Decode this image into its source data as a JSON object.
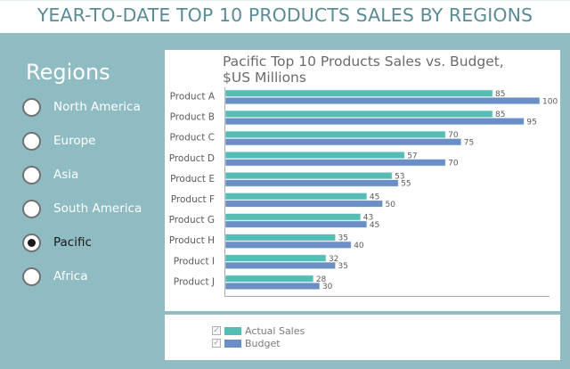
{
  "page_title": "YEAR-TO-DATE TOP 10 PRODUCTS SALES BY REGIONS",
  "sidebar": {
    "title": "Regions",
    "options": [
      {
        "label": "North America",
        "selected": false
      },
      {
        "label": "Europe",
        "selected": false
      },
      {
        "label": "Asia",
        "selected": false
      },
      {
        "label": "South America",
        "selected": false
      },
      {
        "label": "Pacific",
        "selected": true
      },
      {
        "label": "Africa",
        "selected": false
      }
    ]
  },
  "colors": {
    "actual": "#55bdb4",
    "budget": "#6b8ec6",
    "background": "#8fbcc3",
    "title": "#5a8c96"
  },
  "legend": {
    "items": [
      {
        "label": "Actual Sales",
        "checked": true,
        "color": "#55bdb4"
      },
      {
        "label": "Budget",
        "checked": true,
        "color": "#6b8ec6"
      }
    ]
  },
  "chart_data": {
    "type": "bar",
    "orientation": "horizontal",
    "title": "Pacific Top 10 Products Sales vs. Budget, $US Millions",
    "xlabel": "",
    "ylabel": "",
    "xlim": [
      0,
      100
    ],
    "grid": false,
    "legend_position": "bottom",
    "categories": [
      "Product A",
      "Product B",
      "Product C",
      "Product D",
      "Product E",
      "Product F",
      "Product G",
      "Product H",
      "Product I",
      "Product J"
    ],
    "series": [
      {
        "name": "Actual Sales",
        "color": "#55bdb4",
        "values": [
          85,
          85,
          70,
          57,
          53,
          45,
          43,
          35,
          32,
          28
        ]
      },
      {
        "name": "Budget",
        "color": "#6b8ec6",
        "values": [
          100,
          95,
          75,
          70,
          55,
          50,
          45,
          40,
          35,
          30
        ]
      }
    ]
  }
}
